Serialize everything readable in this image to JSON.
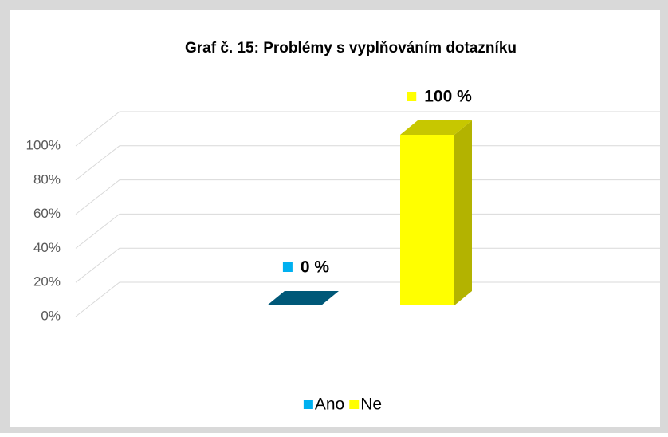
{
  "chart_data": {
    "type": "bar3d",
    "title": "Graf č. 15: Problémy s vyplňováním dotazníku",
    "categories": [
      "Ano",
      "Ne"
    ],
    "values": [
      0,
      100
    ],
    "value_labels": [
      "0 %",
      "100 %"
    ],
    "colors": [
      "#00b0f0",
      "#ffff00"
    ],
    "ylim": [
      0,
      100
    ],
    "yticks": [
      {
        "value": 0,
        "label": "0%"
      },
      {
        "value": 20,
        "label": "20%"
      },
      {
        "value": 40,
        "label": "40%"
      },
      {
        "value": 60,
        "label": "60%"
      },
      {
        "value": 80,
        "label": "80%"
      },
      {
        "value": 100,
        "label": "100%"
      }
    ],
    "grid": true,
    "legend": "bottom"
  }
}
